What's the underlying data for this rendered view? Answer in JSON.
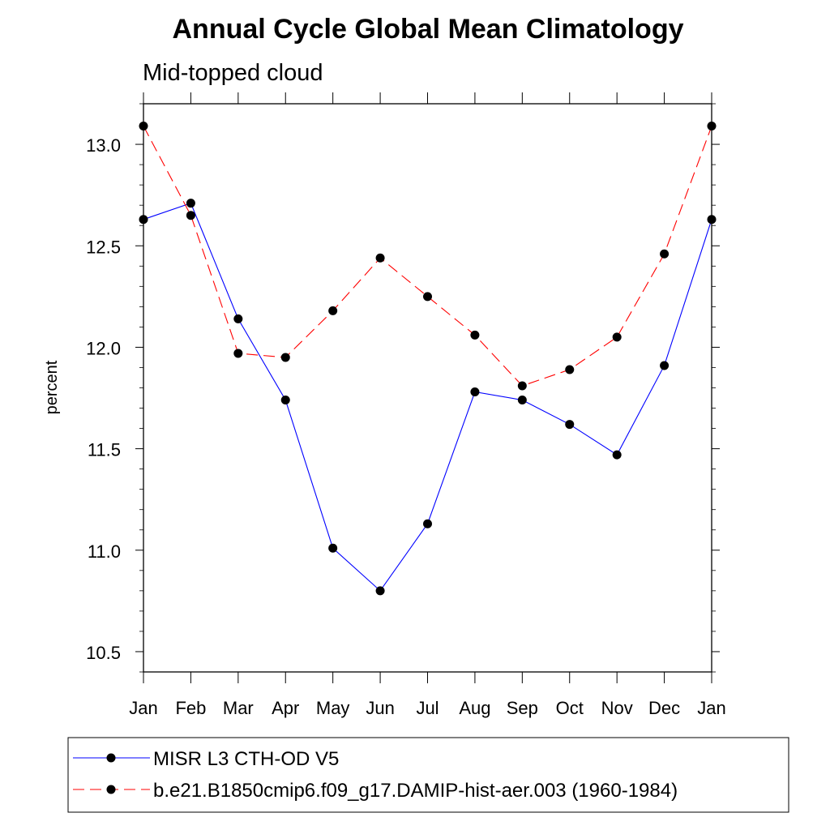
{
  "chart_data": {
    "type": "line",
    "title": "Annual Cycle Global Mean Climatology",
    "subtitle": "Mid-topped cloud",
    "xlabel": "",
    "ylabel": "percent",
    "categories": [
      "Jan",
      "Feb",
      "Mar",
      "Apr",
      "May",
      "Jun",
      "Jul",
      "Aug",
      "Sep",
      "Oct",
      "Nov",
      "Dec",
      "Jan"
    ],
    "yticks": [
      "10.5",
      "11.0",
      "11.5",
      "12.0",
      "12.5",
      "13.0"
    ],
    "ylim": [
      10.4,
      13.2
    ],
    "grid": false,
    "legend_position": "bottom",
    "series": [
      {
        "name": "MISR L3 CTH-OD V5",
        "color": "#0000ff",
        "line_style": "solid",
        "marker": "filled-circle",
        "values": [
          12.63,
          12.71,
          12.14,
          11.74,
          11.01,
          10.8,
          11.13,
          11.78,
          11.74,
          11.62,
          11.47,
          11.91,
          12.63
        ]
      },
      {
        "name": "b.e21.B1850cmip6.f09_g17.DAMIP-hist-aer.003 (1960-1984)",
        "color": "#ff0000",
        "line_style": "dashed",
        "marker": "filled-circle",
        "values": [
          13.09,
          12.65,
          11.97,
          11.95,
          12.18,
          12.44,
          12.25,
          12.06,
          11.81,
          11.89,
          12.05,
          12.46,
          13.09
        ]
      }
    ]
  }
}
